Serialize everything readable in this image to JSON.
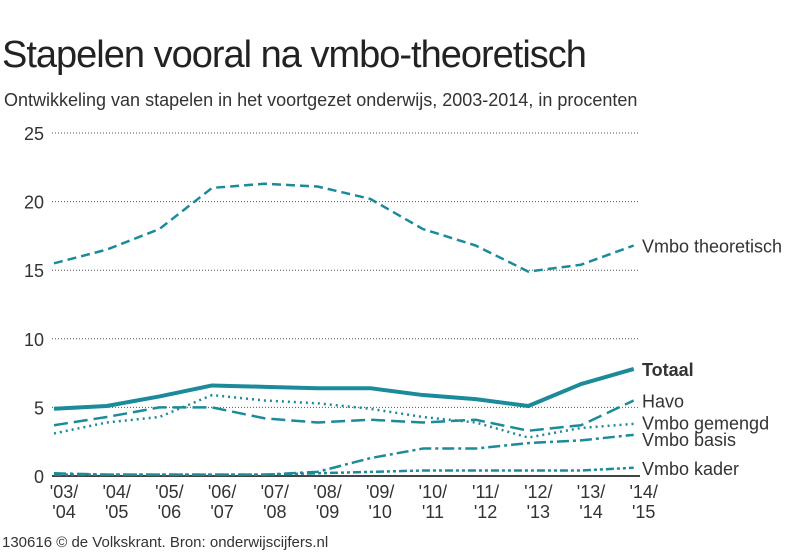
{
  "title": "Stapelen vooral na vmbo-theoretisch",
  "subtitle": "Ontwikkeling van stapelen in het voortgezet onderwijs, 2003-2014, in procenten",
  "footer": "130616 © de Volkskrant. Bron: onderwijscijfers.nl",
  "colors": {
    "line": "#1b8a9a"
  },
  "chart_data": {
    "type": "line",
    "title": "Stapelen vooral na vmbo-theoretisch",
    "xlabel": "",
    "ylabel": "",
    "ylim": [
      0,
      25
    ],
    "yticks": [
      "0",
      "5",
      "10",
      "15",
      "20",
      "25"
    ],
    "grid": true,
    "legend": "direct labels at right end",
    "categories": [
      [
        "'03/",
        "'04"
      ],
      [
        "'04/",
        "'05"
      ],
      [
        "'05/",
        "'06"
      ],
      [
        "'06/",
        "'07"
      ],
      [
        "'07/",
        "'08"
      ],
      [
        "'08/",
        "'09"
      ],
      [
        "'09/",
        "'10"
      ],
      [
        "'10/",
        "'11"
      ],
      [
        "'11/",
        "'12"
      ],
      [
        "'12/",
        "'13"
      ],
      [
        "'13/",
        "'14"
      ],
      [
        "'14/",
        "'15"
      ]
    ],
    "series": [
      {
        "name": "Vmbo theoretisch",
        "style": "dashed",
        "values": [
          15.5,
          16.5,
          18.0,
          21.0,
          21.3,
          21.1,
          20.2,
          18.0,
          16.8,
          14.9,
          15.4,
          16.8
        ]
      },
      {
        "name": "Totaal",
        "style": "solid-bold",
        "values": [
          4.9,
          5.1,
          5.8,
          6.6,
          6.5,
          6.4,
          6.4,
          5.9,
          5.6,
          5.1,
          6.7,
          7.8
        ]
      },
      {
        "name": "Havo",
        "style": "long-dash",
        "values": [
          3.7,
          4.3,
          5.0,
          5.0,
          4.2,
          3.9,
          4.1,
          3.9,
          4.1,
          3.3,
          3.7,
          5.5
        ]
      },
      {
        "name": "Vmbo gemengd",
        "style": "dotted",
        "values": [
          3.1,
          3.9,
          4.3,
          5.9,
          5.5,
          5.3,
          4.9,
          4.3,
          3.9,
          2.8,
          3.5,
          3.8
        ]
      },
      {
        "name": "Vmbo basis",
        "style": "dash-dot",
        "values": [
          0.2,
          0.1,
          0.1,
          0.1,
          0.1,
          0.3,
          1.3,
          2.0,
          2.0,
          2.4,
          2.6,
          3.0
        ]
      },
      {
        "name": "Vmbo kader",
        "style": "dash-dot-dot",
        "values": [
          0.1,
          0.1,
          0.1,
          0.1,
          0.1,
          0.2,
          0.3,
          0.4,
          0.4,
          0.4,
          0.4,
          0.6
        ]
      }
    ]
  }
}
